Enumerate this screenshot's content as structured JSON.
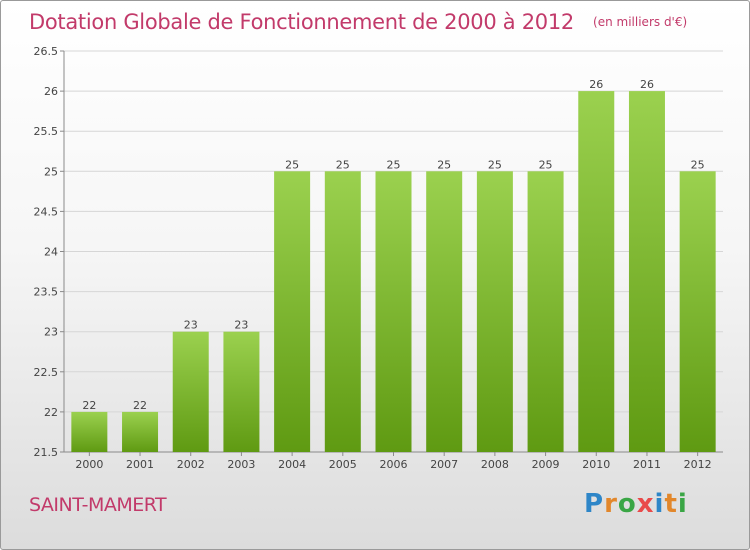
{
  "header": {
    "title": "Dotation Globale de Fonctionnement de 2000 à 2012",
    "unit": "(en milliers d'€)"
  },
  "footer": {
    "commune": "SAINT-MAMERT",
    "logo_text": "Proxiti"
  },
  "colors": {
    "title": "#c23a6a",
    "bar_top": "#9bd14f",
    "bar_bottom": "#5f9a12",
    "grid": "#d6d6d6",
    "axis": "#8a8a8a"
  },
  "chart_data": {
    "type": "bar",
    "title": "Dotation Globale de Fonctionnement de 2000 à 2012",
    "subtitle": "(en milliers d'€)",
    "categories": [
      "2000",
      "2001",
      "2002",
      "2003",
      "2004",
      "2005",
      "2006",
      "2007",
      "2008",
      "2009",
      "2010",
      "2011",
      "2012"
    ],
    "values": [
      22,
      22,
      23,
      23,
      25,
      25,
      25,
      25,
      25,
      25,
      26,
      26,
      25
    ],
    "ylim": [
      21.5,
      26.5
    ],
    "yticks": [
      "21.5",
      "22",
      "22.5",
      "23",
      "23.5",
      "24",
      "24.5",
      "25",
      "25.5",
      "26",
      "26.5"
    ],
    "grid": true
  }
}
